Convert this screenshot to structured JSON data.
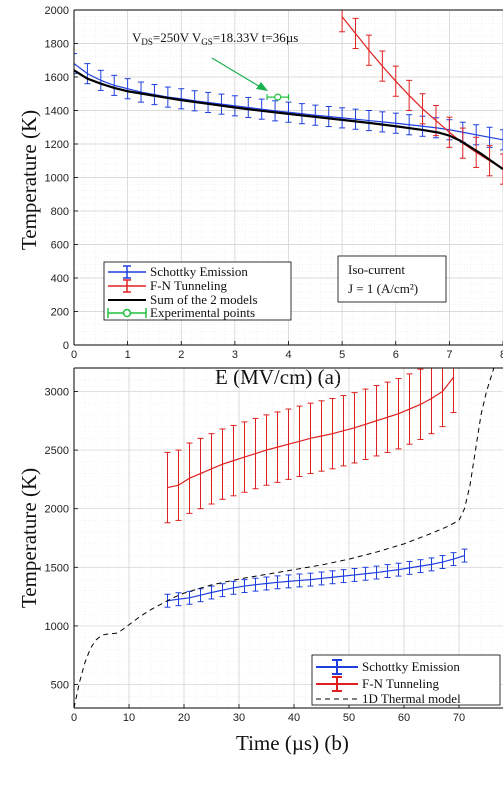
{
  "chart_data": [
    {
      "type": "line",
      "xlabel": "E (MV/cm) (a)",
      "ylabel": "Temperature (K)",
      "xlim": [
        0,
        8
      ],
      "ylim": [
        0,
        2000
      ],
      "xticks": [
        0,
        1,
        2,
        3,
        4,
        5,
        6,
        7,
        8
      ],
      "yticks": [
        0,
        200,
        400,
        600,
        800,
        1000,
        1200,
        1400,
        1600,
        1800,
        2000
      ],
      "grid": true,
      "legend_position": "bottom-left",
      "annotation": {
        "vds_label": "V",
        "vds_sub": "DS",
        "vds_value": "=250V V",
        "vgs_sub": "GS",
        "rest": "=18.33V t=36µs"
      },
      "info_box": [
        "Iso-current",
        "J = 1 (A/cm²)"
      ],
      "series": [
        {
          "name": "Schottky Emission",
          "color": "#1f3fe0",
          "x": [
            0,
            0.25,
            0.5,
            0.75,
            1,
            1.25,
            1.5,
            1.75,
            2,
            2.25,
            2.5,
            2.75,
            3,
            3.25,
            3.5,
            3.75,
            4,
            4.25,
            4.5,
            4.75,
            5,
            5.25,
            5.5,
            5.75,
            6,
            6.25,
            6.5,
            6.75,
            7,
            7.25,
            7.5,
            7.75,
            8
          ],
          "y": [
            1680,
            1620,
            1580,
            1550,
            1530,
            1510,
            1495,
            1480,
            1470,
            1458,
            1448,
            1438,
            1428,
            1418,
            1408,
            1398,
            1390,
            1381,
            1372,
            1364,
            1356,
            1348,
            1340,
            1332,
            1324,
            1315,
            1306,
            1297,
            1285,
            1270,
            1255,
            1240,
            1225
          ],
          "err": 60
        },
        {
          "name": "F-N Tunneling",
          "color": "#e02020",
          "x": [
            5,
            5.25,
            5.5,
            5.75,
            6,
            6.25,
            6.5,
            6.75,
            7,
            7.25,
            7.5,
            7.75,
            8
          ],
          "y": [
            1960,
            1860,
            1760,
            1665,
            1575,
            1490,
            1410,
            1340,
            1270,
            1205,
            1150,
            1100,
            1050
          ],
          "err": 90
        },
        {
          "name": "Sum of the 2 models",
          "color": "#000000",
          "x": [
            0,
            0.25,
            0.5,
            0.75,
            1,
            1.5,
            2,
            2.5,
            3,
            3.5,
            4,
            4.5,
            5,
            5.5,
            6,
            6.5,
            6.8,
            7,
            7.2,
            7.4,
            7.6,
            7.8,
            8
          ],
          "y": [
            1640,
            1590,
            1560,
            1535,
            1515,
            1488,
            1462,
            1440,
            1418,
            1398,
            1380,
            1362,
            1344,
            1326,
            1306,
            1284,
            1268,
            1250,
            1220,
            1180,
            1140,
            1095,
            1050
          ]
        },
        {
          "name": "Experimental points",
          "color": "#22c040",
          "x": [
            3.8
          ],
          "y": [
            1480
          ],
          "xerr": 0.2
        }
      ]
    },
    {
      "type": "line",
      "xlabel": "Time (µs) (b)",
      "ylabel": "Temperature (K)",
      "xlim": [
        0,
        78
      ],
      "ylim": [
        300,
        3200
      ],
      "xticks": [
        0,
        10,
        20,
        30,
        40,
        50,
        60,
        70
      ],
      "yticks": [
        500,
        1000,
        1500,
        2000,
        2500,
        3000
      ],
      "grid": true,
      "legend_position": "bottom-right",
      "series": [
        {
          "name": "Schottky Emission",
          "color": "#1f3fe0",
          "x": [
            17,
            19,
            21,
            23,
            25,
            27,
            29,
            31,
            33,
            35,
            37,
            39,
            41,
            43,
            45,
            47,
            49,
            51,
            53,
            55,
            57,
            59,
            61,
            63,
            65,
            67,
            69,
            71
          ],
          "y": [
            1215,
            1228,
            1240,
            1262,
            1285,
            1305,
            1325,
            1340,
            1352,
            1362,
            1372,
            1380,
            1388,
            1395,
            1405,
            1415,
            1425,
            1435,
            1445,
            1455,
            1468,
            1480,
            1495,
            1510,
            1525,
            1545,
            1570,
            1600
          ],
          "err": 55
        },
        {
          "name": "F-N Tunneling",
          "color": "#e02020",
          "x": [
            17,
            19,
            21,
            23,
            25,
            27,
            29,
            31,
            33,
            35,
            37,
            39,
            41,
            43,
            45,
            47,
            49,
            51,
            53,
            55,
            57,
            59,
            61,
            63,
            65,
            67,
            69
          ],
          "y": [
            2180,
            2200,
            2260,
            2300,
            2340,
            2380,
            2410,
            2440,
            2470,
            2500,
            2525,
            2550,
            2575,
            2600,
            2620,
            2640,
            2665,
            2690,
            2720,
            2750,
            2780,
            2810,
            2850,
            2890,
            2940,
            3000,
            3120
          ],
          "err": 300
        },
        {
          "name": "1D Thermal model",
          "color": "#000000",
          "dash": true,
          "x": [
            0,
            1,
            2,
            3,
            4,
            5,
            6,
            8,
            10,
            12,
            14,
            16,
            18,
            20,
            25,
            30,
            35,
            40,
            45,
            50,
            55,
            60,
            65,
            68,
            70,
            71,
            72,
            73,
            74,
            75,
            76,
            77
          ],
          "y": [
            300,
            520,
            690,
            810,
            880,
            920,
            930,
            940,
            1010,
            1080,
            1140,
            1190,
            1240,
            1280,
            1350,
            1400,
            1440,
            1480,
            1520,
            1570,
            1630,
            1700,
            1790,
            1850,
            1900,
            2000,
            2200,
            2500,
            2800,
            3000,
            3150,
            3300
          ]
        }
      ]
    }
  ]
}
